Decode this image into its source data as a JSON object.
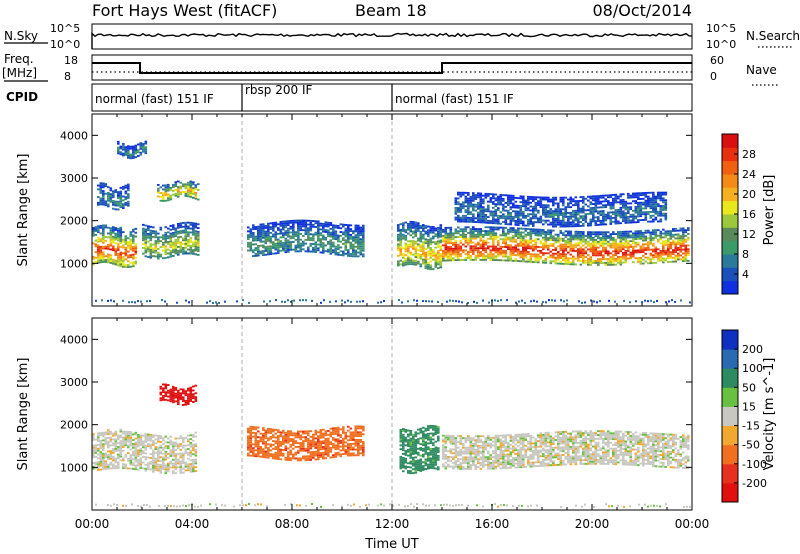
{
  "header": {
    "title": "Fort Hays West (fitACF)",
    "beam": "Beam 18",
    "date": "08/Oct/2014"
  },
  "noise_panel": {
    "left_label": "N.Sky",
    "left_ticks": [
      "10^5",
      "10^0"
    ],
    "right_label": "N.Search",
    "right_ticks": [
      "10^5",
      "10^0"
    ]
  },
  "freq_panel": {
    "left_label_1": "Freq.",
    "left_label_2": "[MHz]",
    "left_ticks": [
      "18",
      "8"
    ],
    "right_label": "Nave",
    "right_ticks": [
      "60",
      "0"
    ]
  },
  "cpid_panel": {
    "label": "CPID",
    "segments": [
      {
        "label": "normal (fast) 151 IF",
        "start_hour": 0,
        "end_hour": 6
      },
      {
        "label": "rbsp 200 IF",
        "start_hour": 6,
        "end_hour": 12
      },
      {
        "label": "normal (fast) 151 IF",
        "start_hour": 12,
        "end_hour": 24
      }
    ]
  },
  "chart_data": [
    {
      "type": "heatmap",
      "title": "",
      "ylabel": "Slant Range [km]",
      "xlabel": "",
      "xlim": [
        0,
        24
      ],
      "ylim": [
        0,
        4500
      ],
      "yticks": [
        "1000",
        "2000",
        "3000",
        "4000"
      ],
      "colorbar": {
        "label": "Power [dB]",
        "ticks": [
          "4",
          "8",
          "12",
          "16",
          "20",
          "24",
          "28"
        ],
        "range": [
          0,
          30
        ],
        "colors": [
          "#1030e0",
          "#1a50b8",
          "#2b7a9a",
          "#3c9a6a",
          "#5a8a5a",
          "#9cc83c",
          "#e8e81c",
          "#f5b020",
          "#f58a18",
          "#f06010",
          "#e83010",
          "#d81010"
        ]
      },
      "echo_regions": [
        {
          "start_hour": 0.0,
          "end_hour": 1.8,
          "range_low_km": 950,
          "range_high_km": 1850,
          "peak_db": 26
        },
        {
          "start_hour": 0.2,
          "end_hour": 1.5,
          "range_low_km": 2300,
          "range_high_km": 2800,
          "peak_db": 8
        },
        {
          "start_hour": 1.0,
          "end_hour": 2.2,
          "range_low_km": 3500,
          "range_high_km": 3800,
          "peak_db": 8
        },
        {
          "start_hour": 2.0,
          "end_hour": 4.3,
          "range_low_km": 1150,
          "range_high_km": 1900,
          "peak_db": 16
        },
        {
          "start_hour": 2.6,
          "end_hour": 4.3,
          "range_low_km": 2500,
          "range_high_km": 2900,
          "peak_db": 20
        },
        {
          "start_hour": 6.2,
          "end_hour": 10.9,
          "range_low_km": 1200,
          "range_high_km": 1950,
          "peak_db": 10
        },
        {
          "start_hour": 12.2,
          "end_hour": 13.9,
          "range_low_km": 900,
          "range_high_km": 1900,
          "peak_db": 20
        },
        {
          "start_hour": 14.0,
          "end_hour": 23.9,
          "range_low_km": 1000,
          "range_high_km": 1800,
          "peak_db": 28
        },
        {
          "start_hour": 14.5,
          "end_hour": 23.0,
          "range_low_km": 1900,
          "range_high_km": 2600,
          "peak_db": 6
        }
      ]
    },
    {
      "type": "heatmap",
      "title": "",
      "ylabel": "Slant Range [km]",
      "xlabel": "Time UT",
      "xlim": [
        0,
        24
      ],
      "ylim": [
        0,
        4500
      ],
      "yticks": [
        "1000",
        "2000",
        "3000",
        "4000"
      ],
      "xticks": [
        "00:00",
        "04:00",
        "08:00",
        "12:00",
        "16:00",
        "20:00",
        "00:00"
      ],
      "colorbar": {
        "label": "Velocity [m s^-1]",
        "ticks": [
          "200",
          "100",
          "50",
          "15",
          "-15",
          "-50",
          "-100",
          "-200"
        ],
        "colors": [
          "#1030c0",
          "#2a6ab0",
          "#2e8a60",
          "#68c040",
          "#c8c8c0",
          "#f0a830",
          "#f07020",
          "#e83020",
          "#e01010"
        ]
      },
      "echo_regions": [
        {
          "start_hour": 0.0,
          "end_hour": 4.2,
          "range_low_km": 900,
          "range_high_km": 1800,
          "velocity": 0
        },
        {
          "start_hour": 2.7,
          "end_hour": 4.2,
          "range_low_km": 2500,
          "range_high_km": 2900,
          "velocity": -200
        },
        {
          "start_hour": 6.2,
          "end_hour": 10.9,
          "range_low_km": 1200,
          "range_high_km": 1900,
          "velocity": -60
        },
        {
          "start_hour": 12.3,
          "end_hour": 13.9,
          "range_low_km": 900,
          "range_high_km": 1900,
          "velocity": 50
        },
        {
          "start_hour": 14.0,
          "end_hour": 23.9,
          "range_low_km": 1000,
          "range_high_km": 1800,
          "velocity": 0
        }
      ]
    }
  ]
}
